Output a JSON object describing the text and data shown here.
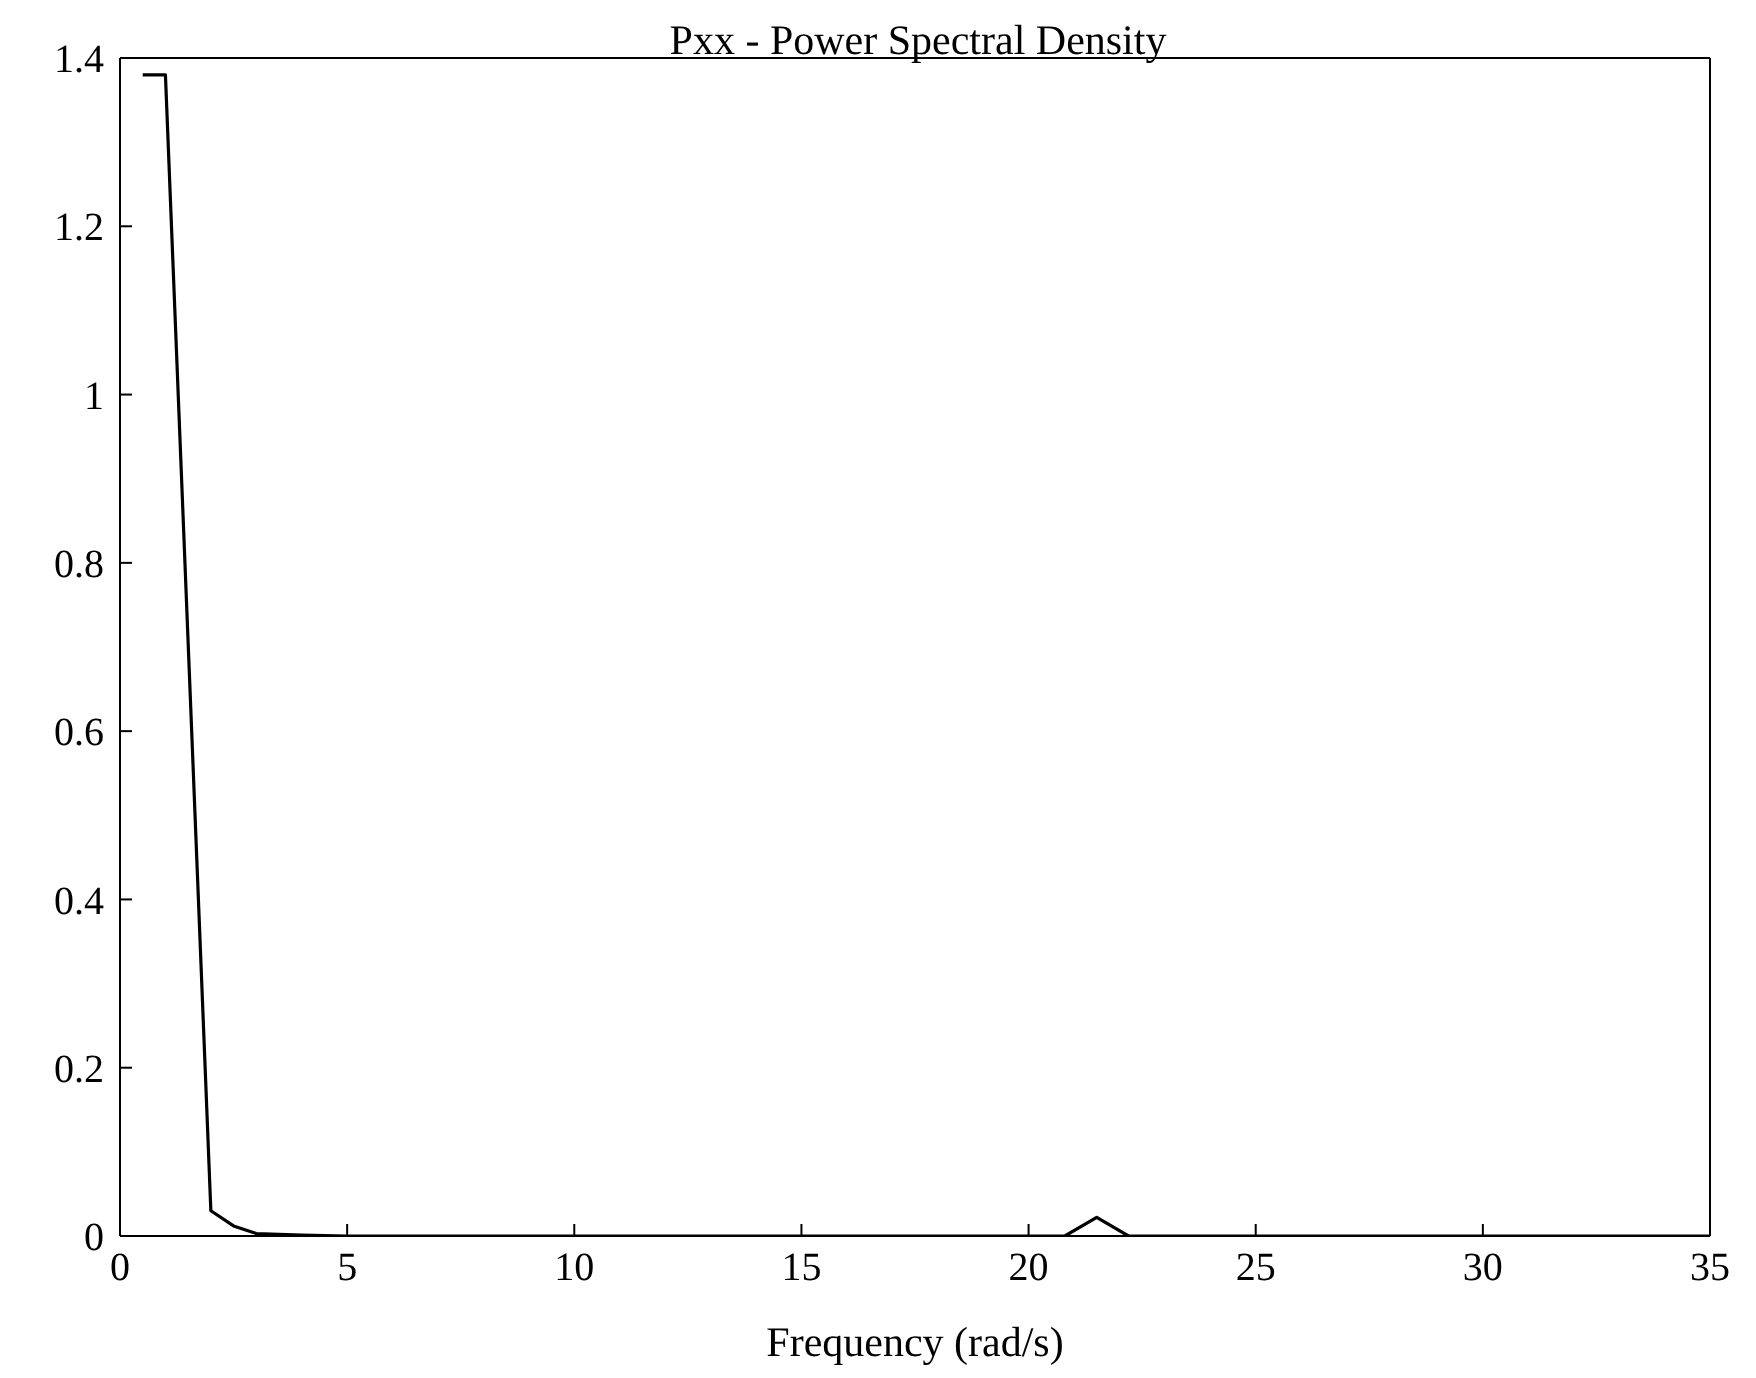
{
  "chart_data": {
    "type": "line",
    "title": "Pxx - Power Spectral Density",
    "xlabel": "Frequency (rad/s)",
    "x": [
      0.5,
      1,
      2,
      2.5,
      3,
      4,
      5,
      10,
      15,
      20,
      20.8,
      21.5,
      22.2,
      25,
      30,
      35
    ],
    "series": [
      {
        "color": "#000000",
        "values": [
          1.38,
          1.38,
          0.03,
          0.012,
          0.003,
          0.001,
          0,
          0,
          0,
          0,
          0,
          0.022,
          0,
          0,
          0,
          0
        ]
      }
    ],
    "xlim": [
      0,
      35
    ],
    "xticks": [
      0,
      5,
      10,
      15,
      20,
      25,
      30,
      35
    ],
    "ylim": [
      0,
      1.4
    ],
    "yticks": [
      0,
      0.2,
      0.4,
      0.6,
      0.8,
      1,
      1.2,
      1.4
    ],
    "grid": false,
    "legend": false,
    "marker": "none",
    "line_style": "solid"
  }
}
